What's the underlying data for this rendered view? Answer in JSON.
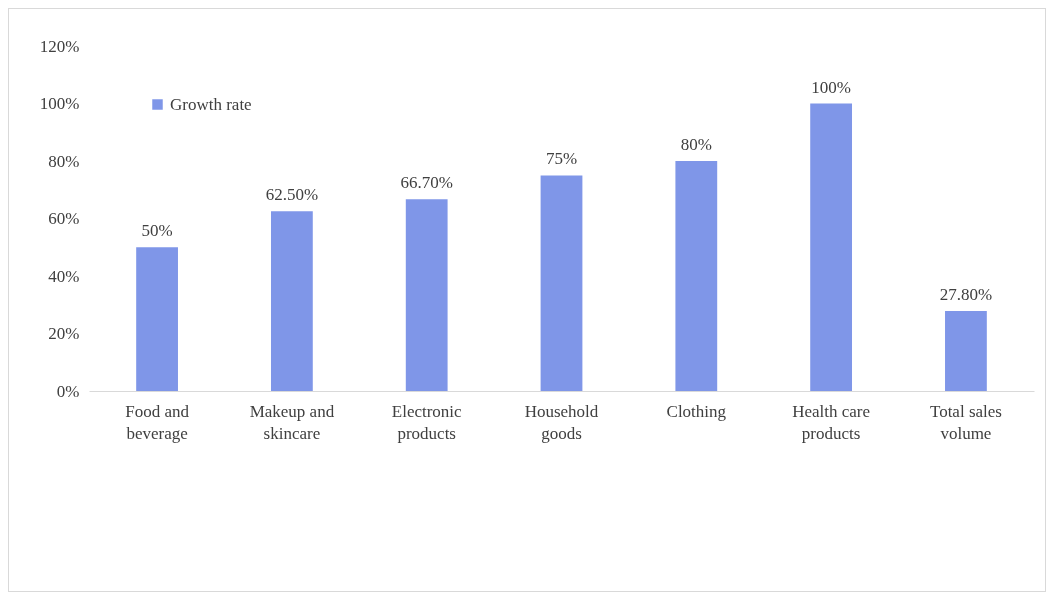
{
  "chart_data": {
    "type": "bar",
    "categories": [
      "Food and beverage",
      "Makeup and skincare",
      "Electronic products",
      "Household goods",
      "Clothing",
      "Health care products",
      "Total sales volume"
    ],
    "series": [
      {
        "name": "Growth rate",
        "color": "#7f96e8",
        "values": [
          50,
          62.5,
          66.7,
          75,
          80,
          100,
          27.8
        ],
        "value_labels": [
          "50%",
          "62.50%",
          "66.70%",
          "75%",
          "80%",
          "100%",
          "27.80%"
        ]
      }
    ],
    "ylim": [
      0,
      120
    ],
    "yticks": [
      {
        "value": 0,
        "label": "0%"
      },
      {
        "value": 20,
        "label": "20%"
      },
      {
        "value": 40,
        "label": "40%"
      },
      {
        "value": 60,
        "label": "60%"
      },
      {
        "value": 80,
        "label": "80%"
      },
      {
        "value": 100,
        "label": "100%"
      },
      {
        "value": 120,
        "label": "120%"
      }
    ],
    "grid": false,
    "legend": "top left"
  }
}
